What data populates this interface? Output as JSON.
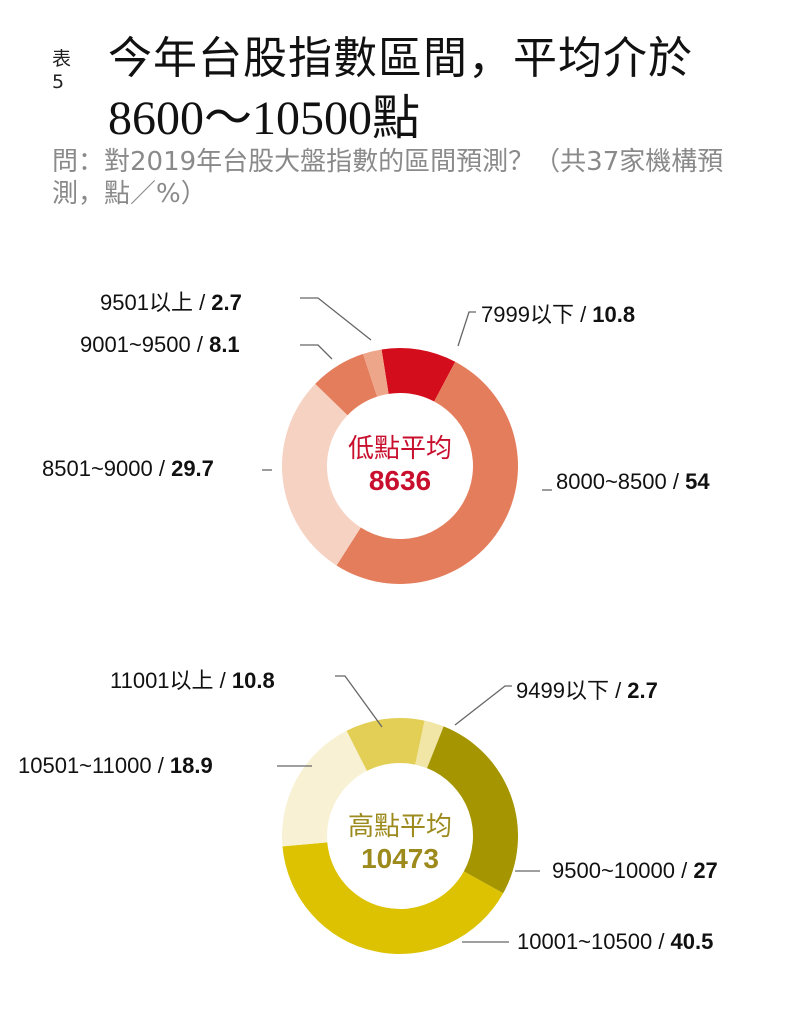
{
  "header": {
    "tag": "表5",
    "title_line1": "今年台股指數區間，平均介於",
    "title_line2": "8600～10500點",
    "subtitle": "問：對2019年台股大盤指數的區間預測？（共37家機構預測，點／%）"
  },
  "chart_data": [
    {
      "type": "pie",
      "title": "低點平均",
      "center_label": "低點平均",
      "center_value": "8636",
      "center_color": "#c8102e",
      "categories": [
        "7999以下",
        "8000~8500",
        "8501~9000",
        "9001~9500",
        "9501以上"
      ],
      "values": [
        10.8,
        54,
        29.7,
        8.1,
        2.7
      ],
      "colors": [
        "#d40d1c",
        "#e47d5b",
        "#f6d2c3",
        "#e47d5b",
        "#eea68a"
      ],
      "unit": "%"
    },
    {
      "type": "pie",
      "title": "高點平均",
      "center_label": "高點平均",
      "center_value": "10473",
      "center_color": "#9c8a1c",
      "categories": [
        "9499以下",
        "9500~10000",
        "10001~10500",
        "10501~11000",
        "11001以上"
      ],
      "values": [
        2.7,
        27,
        40.5,
        18.9,
        10.8
      ],
      "colors": [
        "#f1e6a6",
        "#a59500",
        "#dcc200",
        "#f8f1d4",
        "#e3cf55"
      ],
      "unit": "%"
    }
  ],
  "labels": {
    "low": [
      {
        "range": "7999以下",
        "sep": " / ",
        "value": "10.8"
      },
      {
        "range": "8000~8500",
        "sep": " / ",
        "value": "54"
      },
      {
        "range": "8501~9000",
        "sep": " / ",
        "value": "29.7"
      },
      {
        "range": "9001~9500",
        "sep": " / ",
        "value": "8.1"
      },
      {
        "range": "9501以上",
        "sep": " / ",
        "value": "2.7"
      }
    ],
    "high": [
      {
        "range": "9499以下",
        "sep": " / ",
        "value": "2.7"
      },
      {
        "range": "9500~10000",
        "sep": " / ",
        "value": "27"
      },
      {
        "range": "10001~10500",
        "sep": " / ",
        "value": "40.5"
      },
      {
        "range": "10501~11000",
        "sep": " / ",
        "value": "18.9"
      },
      {
        "range": "11001以上",
        "sep": " / ",
        "value": "10.8"
      }
    ]
  }
}
